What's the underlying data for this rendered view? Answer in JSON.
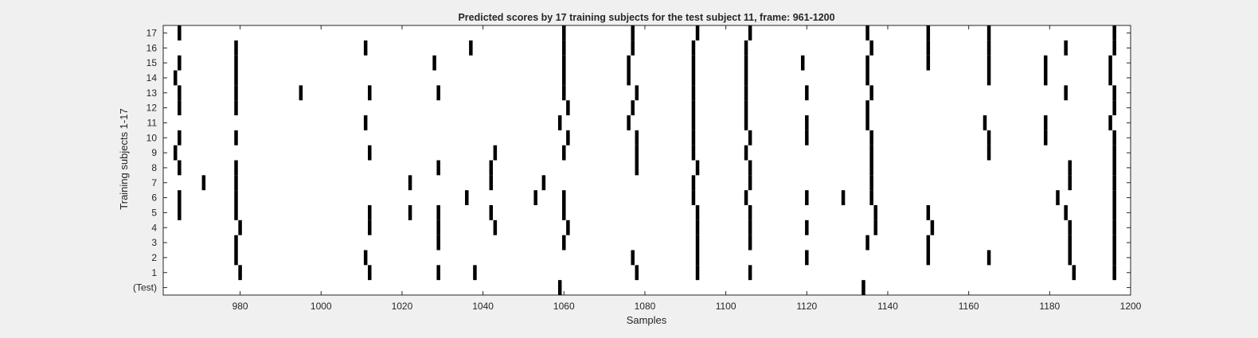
{
  "chart_data": {
    "type": "scatter",
    "title": "Predicted scores by 17 training subjects for the test subject 11, frame: 961-1200",
    "xlabel": "Samples",
    "ylabel": "Training subjects 1-17",
    "xlim": [
      961,
      1200
    ],
    "xticks": [
      980,
      1000,
      1020,
      1040,
      1060,
      1080,
      1100,
      1120,
      1140,
      1160,
      1180,
      1200
    ],
    "rows": [
      "(Test)",
      "1",
      "2",
      "3",
      "4",
      "5",
      "6",
      "7",
      "8",
      "9",
      "10",
      "11",
      "12",
      "13",
      "14",
      "15",
      "16",
      "17"
    ],
    "marker": "vertical-tick",
    "marker_color": "#000000",
    "grid": false,
    "series": [
      {
        "row": "(Test)",
        "x": [
          1059,
          1134
        ]
      },
      {
        "row": "1",
        "x": [
          980,
          1012,
          1029,
          1038,
          1078,
          1093,
          1106,
          1186,
          1196
        ]
      },
      {
        "row": "2",
        "x": [
          979,
          1011,
          1077,
          1093,
          1120,
          1150,
          1165,
          1185,
          1196
        ]
      },
      {
        "row": "3",
        "x": [
          979,
          1029,
          1060,
          1093,
          1106,
          1135,
          1150,
          1185,
          1196
        ]
      },
      {
        "row": "4",
        "x": [
          980,
          1012,
          1029,
          1043,
          1061,
          1093,
          1106,
          1120,
          1137,
          1151,
          1185,
          1196
        ]
      },
      {
        "row": "5",
        "x": [
          965,
          979,
          1012,
          1022,
          1029,
          1042,
          1060,
          1093,
          1106,
          1137,
          1150,
          1184,
          1196
        ]
      },
      {
        "row": "6",
        "x": [
          965,
          979,
          1036,
          1053,
          1060,
          1092,
          1105,
          1120,
          1129,
          1136,
          1182,
          1196
        ]
      },
      {
        "row": "7",
        "x": [
          971,
          979,
          1022,
          1042,
          1055,
          1092,
          1106,
          1136,
          1185,
          1196
        ]
      },
      {
        "row": "8",
        "x": [
          965,
          979,
          1029,
          1042,
          1078,
          1093,
          1106,
          1136,
          1185,
          1196
        ]
      },
      {
        "row": "9",
        "x": [
          964,
          1012,
          1043,
          1060,
          1078,
          1092,
          1105,
          1136,
          1165,
          1196
        ]
      },
      {
        "row": "10",
        "x": [
          965,
          979,
          1061,
          1078,
          1092,
          1106,
          1120,
          1136,
          1165,
          1179,
          1196
        ]
      },
      {
        "row": "11",
        "x": [
          1011,
          1059,
          1076,
          1092,
          1105,
          1120,
          1135,
          1164,
          1179,
          1195
        ]
      },
      {
        "row": "12",
        "x": [
          965,
          979,
          1061,
          1077,
          1092,
          1105,
          1135,
          1196
        ]
      },
      {
        "row": "13",
        "x": [
          965,
          979,
          995,
          1012,
          1029,
          1060,
          1078,
          1092,
          1105,
          1120,
          1136,
          1184,
          1196
        ]
      },
      {
        "row": "14",
        "x": [
          964,
          979,
          1060,
          1076,
          1092,
          1105,
          1135,
          1165,
          1179,
          1195
        ]
      },
      {
        "row": "15",
        "x": [
          965,
          979,
          1028,
          1060,
          1076,
          1092,
          1105,
          1119,
          1135,
          1150,
          1165,
          1179,
          1195
        ]
      },
      {
        "row": "16",
        "x": [
          979,
          1011,
          1037,
          1060,
          1077,
          1092,
          1105,
          1136,
          1150,
          1165,
          1184,
          1196
        ]
      },
      {
        "row": "17",
        "x": [
          965,
          1060,
          1077,
          1093,
          1106,
          1135,
          1150,
          1165,
          1196
        ]
      }
    ]
  }
}
